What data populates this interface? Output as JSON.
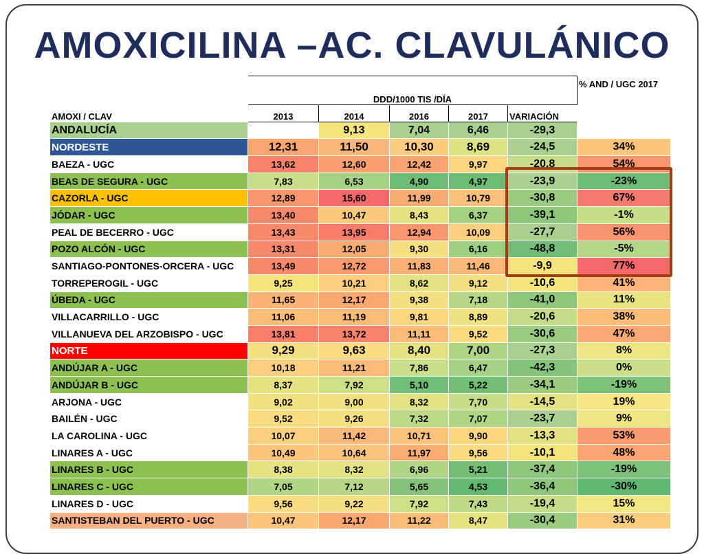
{
  "title": "AMOXICILINA –AC. CLAVULÁNICO",
  "table": {
    "group_header": "DDD/1000 TIS /DÍA",
    "pct_header": "% AND / UGC 2017",
    "corner_label": "AMOXI / CLAV",
    "columns": [
      "2013",
      "2014",
      "2016",
      "2017",
      "VARIACIÓN"
    ],
    "andalucia": {
      "name": "ANDALUCÍA",
      "name_bg": "#a9d08e",
      "cells": [
        {
          "v": "",
          "bg": "#ffffff"
        },
        {
          "v": "9,13",
          "bg": "#f4e47c"
        },
        {
          "v": "7,04",
          "bg": "#a9d08e"
        },
        {
          "v": "6,46",
          "bg": "#a9d08e"
        },
        {
          "v": "-29,3",
          "bg": "#a9d08e"
        }
      ],
      "pct": {
        "v": "",
        "bg": "#ffffff"
      }
    },
    "rows": [
      {
        "name": "NORDESTE",
        "name_bg": "#2f5597",
        "name_color": "#ffffff",
        "sub": true,
        "cells": [
          {
            "v": "12,31",
            "bg": "#f8a56f"
          },
          {
            "v": "11,50",
            "bg": "#f9b678"
          },
          {
            "v": "10,30",
            "bg": "#fbcc7f"
          },
          {
            "v": "8,69",
            "bg": "#dfe283"
          },
          {
            "v": "-24,5",
            "bg": "#a9d08e"
          }
        ],
        "pct": {
          "v": "34%",
          "bg": "#fdc57c"
        }
      },
      {
        "name": "BAEZA - UGC",
        "name_bg": "#ffffff",
        "cells": [
          {
            "v": "13,62",
            "bg": "#f8836b"
          },
          {
            "v": "12,60",
            "bg": "#f9a06e"
          },
          {
            "v": "12,42",
            "bg": "#f9a36f"
          },
          {
            "v": "9,97",
            "bg": "#fbd57f"
          },
          {
            "v": "-20,8",
            "bg": "#c5dc89"
          }
        ],
        "pct": {
          "v": "54%",
          "bg": "#f8976f"
        }
      },
      {
        "name": "BEAS DE SEGURA - UGC",
        "name_bg": "#8cc152",
        "cells": [
          {
            "v": "7,83",
            "bg": "#c8de87"
          },
          {
            "v": "6,53",
            "bg": "#a4d184"
          },
          {
            "v": "4,90",
            "bg": "#6dbd74"
          },
          {
            "v": "4,97",
            "bg": "#6dbd74"
          },
          {
            "v": "-23,9",
            "bg": "#a9d08e"
          }
        ],
        "pct": {
          "v": "-23%",
          "bg": "#6cbc76"
        }
      },
      {
        "name": "CAZORLA - UGC",
        "name_bg": "#ffc000",
        "cells": [
          {
            "v": "12,89",
            "bg": "#f8976d"
          },
          {
            "v": "15,60",
            "bg": "#f4686a"
          },
          {
            "v": "11,99",
            "bg": "#f9ac72"
          },
          {
            "v": "10,79",
            "bg": "#fbc07b"
          },
          {
            "v": "-30,8",
            "bg": "#9acb80"
          }
        ],
        "pct": {
          "v": "67%",
          "bg": "#f47a70"
        }
      },
      {
        "name": "JÓDAR - UGC",
        "name_bg": "#8cc152",
        "cells": [
          {
            "v": "13,40",
            "bg": "#f8896b"
          },
          {
            "v": "10,47",
            "bg": "#fbc87c"
          },
          {
            "v": "8,43",
            "bg": "#e5e282"
          },
          {
            "v": "6,37",
            "bg": "#a4d184"
          },
          {
            "v": "-39,1",
            "bg": "#8dc77c"
          }
        ],
        "pct": {
          "v": "-1%",
          "bg": "#c6df87"
        }
      },
      {
        "name": "PEAL DE BECERRO - UGC",
        "name_bg": "#ffffff",
        "cells": [
          {
            "v": "13,43",
            "bg": "#f8896b"
          },
          {
            "v": "13,95",
            "bg": "#f77d6a"
          },
          {
            "v": "12,94",
            "bg": "#f9966e"
          },
          {
            "v": "10,09",
            "bg": "#fbcf7e"
          },
          {
            "v": "-27,7",
            "bg": "#a9d08e"
          }
        ],
        "pct": {
          "v": "56%",
          "bg": "#f8946f"
        }
      },
      {
        "name": "POZO ALCÓN - UGC",
        "name_bg": "#8cc152",
        "cells": [
          {
            "v": "13,31",
            "bg": "#f8896b"
          },
          {
            "v": "12,05",
            "bg": "#f9ac72"
          },
          {
            "v": "9,30",
            "bg": "#f5df80"
          },
          {
            "v": "6,16",
            "bg": "#9dcf82"
          },
          {
            "v": "-48,8",
            "bg": "#71bd76"
          }
        ],
        "pct": {
          "v": "-5%",
          "bg": "#b4d787"
        }
      },
      {
        "name": "SANTIAGO-PONTONES-ORCERA - UGC",
        "name_bg": "#ffffff",
        "cells": [
          {
            "v": "13,49",
            "bg": "#f8886b"
          },
          {
            "v": "12,72",
            "bg": "#f99a6e"
          },
          {
            "v": "11,83",
            "bg": "#f9b074"
          },
          {
            "v": "11,46",
            "bg": "#fab978"
          },
          {
            "v": "-9,9",
            "bg": "#f4e47c"
          }
        ],
        "pct": {
          "v": "77%",
          "bg": "#f4686a"
        }
      },
      {
        "name": "TORREPEROGIL - UGC",
        "name_bg": "#ffffff",
        "cells": [
          {
            "v": "9,25",
            "bg": "#f4e47c"
          },
          {
            "v": "10,21",
            "bg": "#fbce7f"
          },
          {
            "v": "8,62",
            "bg": "#e3e282"
          },
          {
            "v": "9,12",
            "bg": "#f5df80"
          },
          {
            "v": "-10,6",
            "bg": "#f4e47c"
          }
        ],
        "pct": {
          "v": "41%",
          "bg": "#fbb378"
        }
      },
      {
        "name": "ÚBEDA - UGC",
        "name_bg": "#8cc152",
        "cells": [
          {
            "v": "11,65",
            "bg": "#f9b375"
          },
          {
            "v": "12,17",
            "bg": "#f9a870"
          },
          {
            "v": "9,38",
            "bg": "#f5df80"
          },
          {
            "v": "7,18",
            "bg": "#b6d685"
          },
          {
            "v": "-41,0",
            "bg": "#8dc77c"
          }
        ],
        "pct": {
          "v": "11%",
          "bg": "#e8e482"
        }
      },
      {
        "name": "VILLACARRILLO - UGC",
        "name_bg": "#ffffff",
        "cells": [
          {
            "v": "11,06",
            "bg": "#fabd79"
          },
          {
            "v": "11,19",
            "bg": "#fabb78"
          },
          {
            "v": "9,81",
            "bg": "#fbd87f"
          },
          {
            "v": "8,89",
            "bg": "#eee281"
          },
          {
            "v": "-20,6",
            "bg": "#c5dc89"
          }
        ],
        "pct": {
          "v": "38%",
          "bg": "#fbbc7a"
        }
      },
      {
        "name": "VILLANUEVA DEL ARZOBISPO - UGC",
        "name_bg": "#ffffff",
        "cells": [
          {
            "v": "13,81",
            "bg": "#f8806b"
          },
          {
            "v": "13,72",
            "bg": "#f8826b"
          },
          {
            "v": "11,11",
            "bg": "#fabb78"
          },
          {
            "v": "9,52",
            "bg": "#fbdc80"
          },
          {
            "v": "-30,6",
            "bg": "#9acb80"
          }
        ],
        "pct": {
          "v": "47%",
          "bg": "#faa874"
        }
      },
      {
        "name": "NORTE",
        "name_bg": "#ff0000",
        "name_color": "#ffffff",
        "sub": true,
        "cells": [
          {
            "v": "9,29",
            "bg": "#f5df80"
          },
          {
            "v": "9,63",
            "bg": "#fbdc80"
          },
          {
            "v": "8,40",
            "bg": "#e5e282"
          },
          {
            "v": "7,00",
            "bg": "#b0d585"
          },
          {
            "v": "-27,3",
            "bg": "#a9d08e"
          }
        ],
        "pct": {
          "v": "8%",
          "bg": "#ede683"
        }
      },
      {
        "name": "ANDÚJAR A - UGC",
        "name_bg": "#8cc152",
        "cells": [
          {
            "v": "10,18",
            "bg": "#fbce7f"
          },
          {
            "v": "11,21",
            "bg": "#fabb78"
          },
          {
            "v": "7,86",
            "bg": "#c8de87"
          },
          {
            "v": "6,47",
            "bg": "#a4d184"
          },
          {
            "v": "-42,3",
            "bg": "#84c47a"
          }
        ],
        "pct": {
          "v": "0%",
          "bg": "#cadf87"
        }
      },
      {
        "name": "ANDÚJAR B - UGC",
        "name_bg": "#8cc152",
        "cells": [
          {
            "v": "8,37",
            "bg": "#e5e282"
          },
          {
            "v": "7,92",
            "bg": "#cde085"
          },
          {
            "v": "5,10",
            "bg": "#70be75"
          },
          {
            "v": "5,22",
            "bg": "#72be75"
          },
          {
            "v": "-34,1",
            "bg": "#9acb80"
          }
        ],
        "pct": {
          "v": "-19%",
          "bg": "#7ec27a"
        }
      },
      {
        "name": "ARJONA - UGC",
        "name_bg": "#ffffff",
        "cells": [
          {
            "v": "9,02",
            "bg": "#f2e181"
          },
          {
            "v": "9,00",
            "bg": "#f2e181"
          },
          {
            "v": "8,32",
            "bg": "#e3e282"
          },
          {
            "v": "7,70",
            "bg": "#c5dd86"
          },
          {
            "v": "-14,5",
            "bg": "#e3e282"
          }
        ],
        "pct": {
          "v": "19%",
          "bg": "#f6e683"
        }
      },
      {
        "name": "BAILÉN - UGC",
        "name_bg": "#ffffff",
        "cells": [
          {
            "v": "9,52",
            "bg": "#fbdc80"
          },
          {
            "v": "9,26",
            "bg": "#f5df80"
          },
          {
            "v": "7,32",
            "bg": "#bcd986"
          },
          {
            "v": "7,07",
            "bg": "#b0d585"
          },
          {
            "v": "-23,7",
            "bg": "#a9d08e"
          }
        ],
        "pct": {
          "v": "9%",
          "bg": "#ede683"
        }
      },
      {
        "name": "LA CAROLINA - UGC",
        "name_bg": "#ffffff",
        "cells": [
          {
            "v": "10,07",
            "bg": "#fbd07e"
          },
          {
            "v": "11,42",
            "bg": "#fab978"
          },
          {
            "v": "10,71",
            "bg": "#fbc27b"
          },
          {
            "v": "9,90",
            "bg": "#fbd67f"
          },
          {
            "v": "-13,3",
            "bg": "#e3e282"
          }
        ],
        "pct": {
          "v": "53%",
          "bg": "#f99a70"
        }
      },
      {
        "name": "LINARES A - UGC",
        "name_bg": "#ffffff",
        "cells": [
          {
            "v": "10,49",
            "bg": "#fbc67c"
          },
          {
            "v": "10,64",
            "bg": "#fbc47c"
          },
          {
            "v": "11,97",
            "bg": "#f9ad72"
          },
          {
            "v": "9,56",
            "bg": "#fbdb80"
          },
          {
            "v": "-10,1",
            "bg": "#f4e47c"
          }
        ],
        "pct": {
          "v": "48%",
          "bg": "#faa573"
        }
      },
      {
        "name": "LINARES B - UGC",
        "name_bg": "#8cc152",
        "cells": [
          {
            "v": "8,38",
            "bg": "#e5e282"
          },
          {
            "v": "8,32",
            "bg": "#e3e282"
          },
          {
            "v": "6,96",
            "bg": "#b0d585"
          },
          {
            "v": "5,21",
            "bg": "#72be75"
          },
          {
            "v": "-37,4",
            "bg": "#8dc77c"
          }
        ],
        "pct": {
          "v": "-19%",
          "bg": "#7ec27a"
        }
      },
      {
        "name": "LINARES C - UGC",
        "name_bg": "#8cc152",
        "cells": [
          {
            "v": "7,05",
            "bg": "#b0d585"
          },
          {
            "v": "7,12",
            "bg": "#b6d685"
          },
          {
            "v": "5,65",
            "bg": "#84c47a"
          },
          {
            "v": "4,53",
            "bg": "#63b970"
          },
          {
            "v": "-36,4",
            "bg": "#8dc77c"
          }
        ],
        "pct": {
          "v": "-30%",
          "bg": "#5fb870"
        }
      },
      {
        "name": "LINARES D - UGC",
        "name_bg": "#ffffff",
        "cells": [
          {
            "v": "9,56",
            "bg": "#fbdb80"
          },
          {
            "v": "9,22",
            "bg": "#f5df80"
          },
          {
            "v": "7,92",
            "bg": "#cde085"
          },
          {
            "v": "7,43",
            "bg": "#bfda86"
          },
          {
            "v": "-19,4",
            "bg": "#c5dc89"
          }
        ],
        "pct": {
          "v": "15%",
          "bg": "#f1e682"
        }
      },
      {
        "name": "SANTISTEBAN DEL PUERTO - UGC",
        "name_bg": "#f4b183",
        "cells": [
          {
            "v": "10,47",
            "bg": "#fbc67c"
          },
          {
            "v": "12,17",
            "bg": "#f9a870"
          },
          {
            "v": "11,22",
            "bg": "#fabb78"
          },
          {
            "v": "8,47",
            "bg": "#e5e282"
          },
          {
            "v": "-30,4",
            "bg": "#9acb80"
          }
        ],
        "pct": {
          "v": "31%",
          "bg": "#fccc7e"
        }
      }
    ]
  }
}
